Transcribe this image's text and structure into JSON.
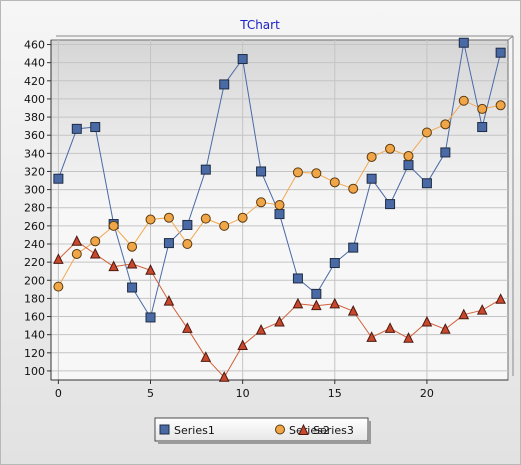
{
  "chart_data": {
    "type": "line",
    "title": "TChart",
    "xlabel": "",
    "ylabel": "",
    "xlim": [
      -0.4,
      24.4
    ],
    "ylim": [
      90,
      465
    ],
    "x_ticks": [
      0,
      5,
      10,
      15,
      20
    ],
    "y_ticks": [
      100,
      120,
      140,
      160,
      180,
      200,
      220,
      240,
      260,
      280,
      300,
      320,
      340,
      360,
      380,
      400,
      420,
      440,
      460
    ],
    "grid": true,
    "legend_position": "bottom",
    "x": [
      0,
      1,
      2,
      3,
      4,
      5,
      6,
      7,
      8,
      9,
      10,
      11,
      12,
      13,
      14,
      15,
      16,
      17,
      18,
      19,
      20,
      21,
      22,
      23,
      24
    ],
    "series": [
      {
        "name": "Series1",
        "marker": "square",
        "line_color": "#4a6aa6",
        "fill_color": "#4a6aa6",
        "values": [
          312,
          367,
          369,
          262,
          192,
          159,
          241,
          261,
          322,
          416,
          444,
          320,
          273,
          202,
          185,
          219,
          236,
          312,
          284,
          327,
          307,
          341,
          462,
          369,
          451
        ]
      },
      {
        "name": "Series2",
        "marker": "circle",
        "line_color": "#f3a850",
        "fill_color": "#f0a547",
        "values": [
          193,
          229,
          243,
          260,
          237,
          267,
          269,
          240,
          268,
          260,
          269,
          286,
          283,
          319,
          318,
          308,
          301,
          336,
          345,
          337,
          363,
          372,
          398,
          389,
          393
        ]
      },
      {
        "name": "Series3",
        "marker": "triangle",
        "line_color": "#d0603a",
        "fill_color": "#c9472c",
        "values": [
          223,
          243,
          229,
          215,
          218,
          211,
          177,
          147,
          115,
          93,
          128,
          145,
          154,
          174,
          172,
          174,
          166,
          137,
          147,
          136,
          154,
          146,
          162,
          167,
          179
        ]
      }
    ]
  }
}
